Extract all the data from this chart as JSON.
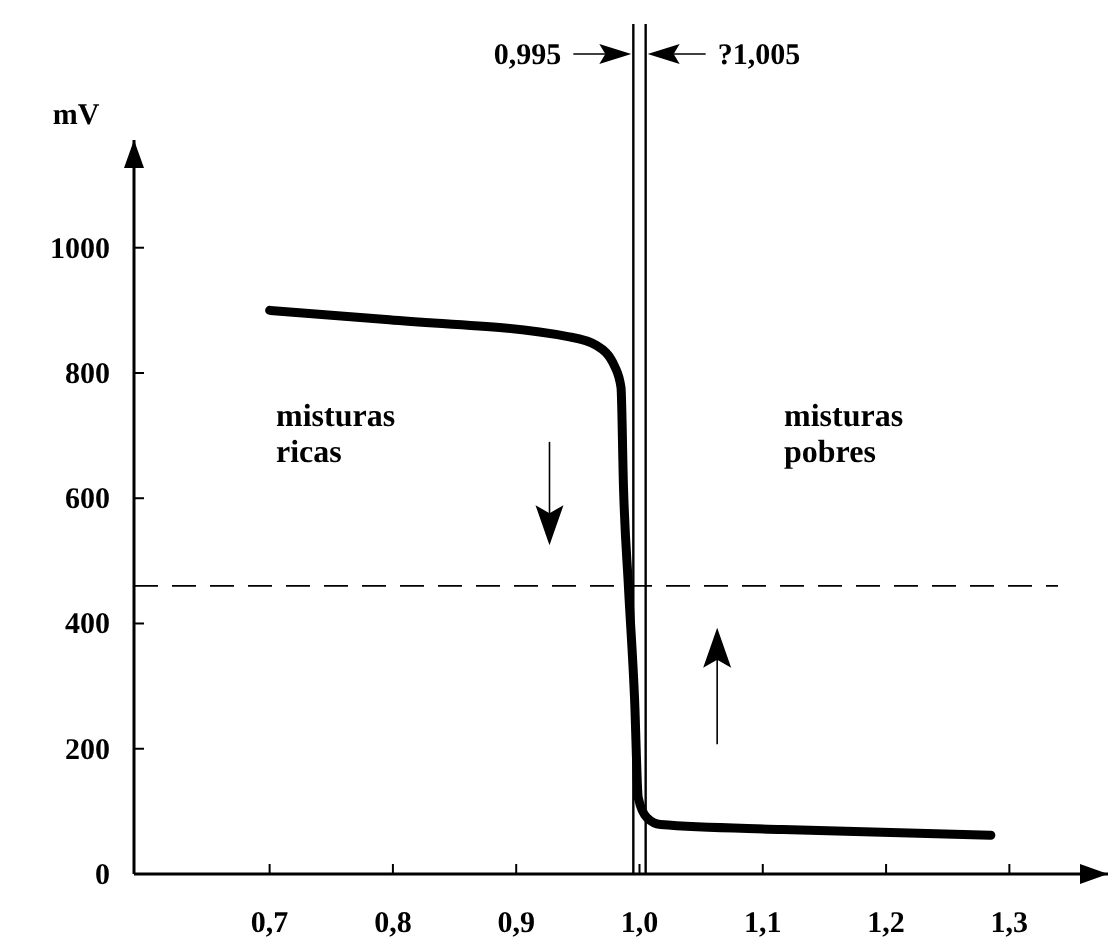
{
  "chart_data": {
    "type": "line",
    "ylabel": "mV",
    "x": [
      0.7,
      0.797,
      0.942,
      0.965,
      0.98,
      0.985,
      0.987,
      0.991,
      0.996,
      0.999,
      1.006,
      1.017,
      1.116,
      1.285
    ],
    "series": [
      {
        "color": "#000000",
        "values": [
          900,
          885,
          858,
          844,
          810,
          777,
          619,
          460,
          280,
          122,
          90,
          79,
          71,
          62
        ]
      }
    ],
    "xlim": [
      0.59,
      1.38
    ],
    "ylim": [
      0,
      1172
    ],
    "xticks": [
      {
        "value": 0.7,
        "label": "0,7"
      },
      {
        "value": 0.8,
        "label": "0,8"
      },
      {
        "value": 0.9,
        "label": "0,9"
      },
      {
        "value": 1.0,
        "label": "1,0"
      },
      {
        "value": 1.1,
        "label": "1,1"
      },
      {
        "value": 1.2,
        "label": "1,2"
      },
      {
        "value": 1.3,
        "label": "1,3"
      }
    ],
    "yticks": [
      0,
      200,
      400,
      600,
      800,
      1000
    ],
    "ref_lines": [
      {
        "axis": "x",
        "value": 0.995,
        "label": "0,995",
        "color": "#000000",
        "line_style": "solid"
      },
      {
        "axis": "x",
        "value": 1.005,
        "label": "?1,005",
        "color": "#000000",
        "line_style": "solid"
      },
      {
        "axis": "y",
        "value": 460,
        "color": "#000000",
        "line_style": "dashed"
      }
    ],
    "annotations": [
      "misturas\nricas",
      "misturas\npobres"
    ],
    "grid": false,
    "marker": "none",
    "line_style": "solid"
  }
}
